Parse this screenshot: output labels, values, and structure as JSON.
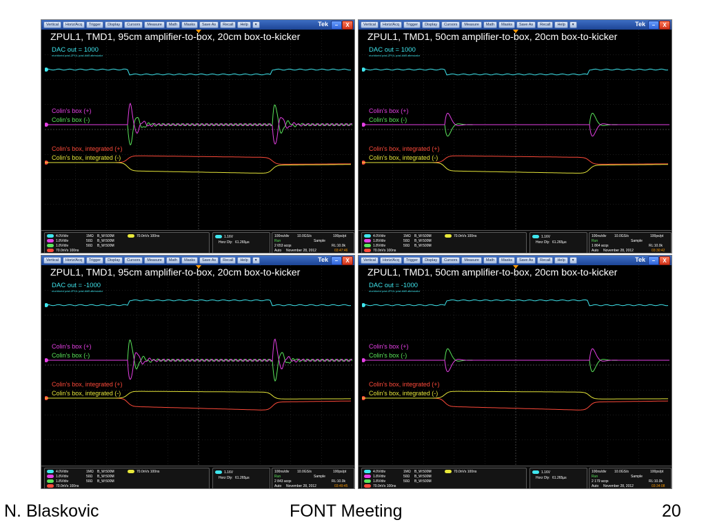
{
  "menu": [
    "Vertical",
    "Horiz/Acq",
    "Trigger",
    "Display",
    "Cursors",
    "Measure",
    "Math",
    "Masks",
    "Save As",
    "Recall",
    "Help",
    "▾"
  ],
  "brand": "Tek",
  "window_buttons": {
    "minimize": "–",
    "close": "X"
  },
  "labels": {
    "plus": "Colin's box (+)",
    "minus": "Colin's box (-)",
    "int_plus": "Colin's box, integrated (+)",
    "int_minus": "Colin's box, integrated (-)"
  },
  "scopes": [
    {
      "title": "ZPUL1, TMD1, 95cm amplifier-to-box, 20cm box-to-kicker",
      "dac": "DAC out = 1000",
      "note": "monitored post-ZPUL post-6dB attenuator",
      "status": {
        "ch1": {
          "label": "C1",
          "scale": "4.0V/div",
          "imp": "1MΩ",
          "bw": "B_W:500M",
          "color": "#3fe6ee"
        },
        "ch2": {
          "label": "C2",
          "scale": "1.8V/div",
          "imp": "50Ω",
          "bw": "B_W:500M",
          "color": "#e640e6"
        },
        "ch3": {
          "label": "C3",
          "scale": "1.8V/div",
          "imp": "50Ω",
          "bw": "B_W:500M",
          "color": "#5be65b"
        },
        "math": {
          "label": "M1",
          "scale": "70.0nVs 100ns",
          "color": "#ff4a3a"
        },
        "math2": {
          "label": "M2",
          "scale": "70.0nVs 100ns",
          "color": "#e8e83a"
        },
        "trigger": {
          "label": "C1",
          "level": "1.16V",
          "delay_label": "Horz Dly:",
          "delay": "61.265µs"
        },
        "acq": {
          "timebase": "100ns/div",
          "rate": "10.0GS/s",
          "res": "100ps/pt",
          "state": "Run",
          "mode": "Sample",
          "acqs": "2 653 acqs",
          "rl": "RL:10.0k",
          "trig": "Auto",
          "date": "November 28, 2012",
          "time": "03:47:46"
        }
      }
    },
    {
      "title": "ZPUL1, TMD1, 50cm amplifier-to-box, 20cm box-to-kicker",
      "dac": "DAC out = 1000",
      "note": "monitored post-ZPUL post-6dB attenuator",
      "status": {
        "ch1": {
          "label": "C1",
          "scale": "4.0V/div",
          "imp": "1MΩ",
          "bw": "B_W:500M",
          "color": "#3fe6ee"
        },
        "ch2": {
          "label": "C2",
          "scale": "1.8V/div",
          "imp": "50Ω",
          "bw": "B_W:500M",
          "color": "#e640e6"
        },
        "ch3": {
          "label": "C3",
          "scale": "1.8V/div",
          "imp": "50Ω",
          "bw": "B_W:500M",
          "color": "#5be65b"
        },
        "math": {
          "label": "M1",
          "scale": "70.0nVs 100ns",
          "color": "#ff4a3a"
        },
        "math2": {
          "label": "M2",
          "scale": "70.0nVs 100ns",
          "color": "#e8e83a"
        },
        "trigger": {
          "label": "C1",
          "level": "1.16V",
          "delay_label": "Horz Dly:",
          "delay": "61.265µs"
        },
        "acq": {
          "timebase": "100ns/div",
          "rate": "10.0GS/s",
          "res": "100ps/pt",
          "state": "Run",
          "mode": "Sample",
          "acqs": "1 864 acqs",
          "rl": "RL:10.0k",
          "trig": "Auto",
          "date": "November 28, 2012",
          "time": "03:30:42"
        }
      }
    },
    {
      "title": "ZPUL1, TMD1, 95cm amplifier-to-box, 20cm box-to-kicker",
      "dac": "DAC out = -1000",
      "note": "monitored post-ZPUL post-6dB attenuator",
      "status": {
        "ch1": {
          "label": "C1",
          "scale": "4.0V/div",
          "imp": "1MΩ",
          "bw": "B_W:500M",
          "color": "#3fe6ee"
        },
        "ch2": {
          "label": "C2",
          "scale": "1.8V/div",
          "imp": "50Ω",
          "bw": "B_W:500M",
          "color": "#e640e6"
        },
        "ch3": {
          "label": "C3",
          "scale": "1.8V/div",
          "imp": "50Ω",
          "bw": "B_W:500M",
          "color": "#5be65b"
        },
        "math": {
          "label": "M1",
          "scale": "70.0nVs 100ns",
          "color": "#ff4a3a"
        },
        "math2": {
          "label": "M2",
          "scale": "70.0nVs 100ns",
          "color": "#e8e83a"
        },
        "trigger": {
          "label": "C1",
          "level": "1.16V",
          "delay_label": "Horz Dly:",
          "delay": "61.265µs"
        },
        "acq": {
          "timebase": "100ns/div",
          "rate": "10.0GS/s",
          "res": "100ps/pt",
          "state": "Run",
          "mode": "Sample",
          "acqs": "2 843 acqs",
          "rl": "RL:10.0k",
          "trig": "Auto",
          "date": "November 28, 2012",
          "time": "03:49:45"
        }
      }
    },
    {
      "title": "ZPUL1, TMD1, 50cm amplifier-to-box, 20cm box-to-kicker",
      "dac": "DAC out = -1000",
      "note": "monitored post-ZPUL post-6dB attenuator",
      "status": {
        "ch1": {
          "label": "C1",
          "scale": "4.0V/div",
          "imp": "1MΩ",
          "bw": "B_W:500M",
          "color": "#3fe6ee"
        },
        "ch2": {
          "label": "C2",
          "scale": "1.8V/div",
          "imp": "50Ω",
          "bw": "B_W:500M",
          "color": "#e640e6"
        },
        "ch3": {
          "label": "C3",
          "scale": "1.8V/div",
          "imp": "50Ω",
          "bw": "B_W:500M",
          "color": "#5be65b"
        },
        "math": {
          "label": "M1",
          "scale": "70.0nVs 100ns",
          "color": "#ff4a3a"
        },
        "math2": {
          "label": "M2",
          "scale": "70.0nVs 100ns",
          "color": "#e8e83a"
        },
        "trigger": {
          "label": "C1",
          "level": "1.16V",
          "delay_label": "Horz Dly:",
          "delay": "61.265µs"
        },
        "acq": {
          "timebase": "100ns/div",
          "rate": "10.0GS/s",
          "res": "100ps/pt",
          "state": "Run",
          "mode": "Sample",
          "acqs": "2 179 acqs",
          "rl": "RL:10.0k",
          "trig": "Auto",
          "date": "November 28, 2012",
          "time": "03:34:08"
        }
      }
    }
  ],
  "colors": {
    "cyan": "#3fe6ee",
    "magenta": "#e640e6",
    "green": "#5be65b",
    "red": "#ff4a3a",
    "yellow": "#e8e83a",
    "grid": "#3a3a3a",
    "accent": "#ff9a00"
  },
  "footer": {
    "author": "N. Blaskovic",
    "meeting": "FONT Meeting",
    "page": "20"
  }
}
